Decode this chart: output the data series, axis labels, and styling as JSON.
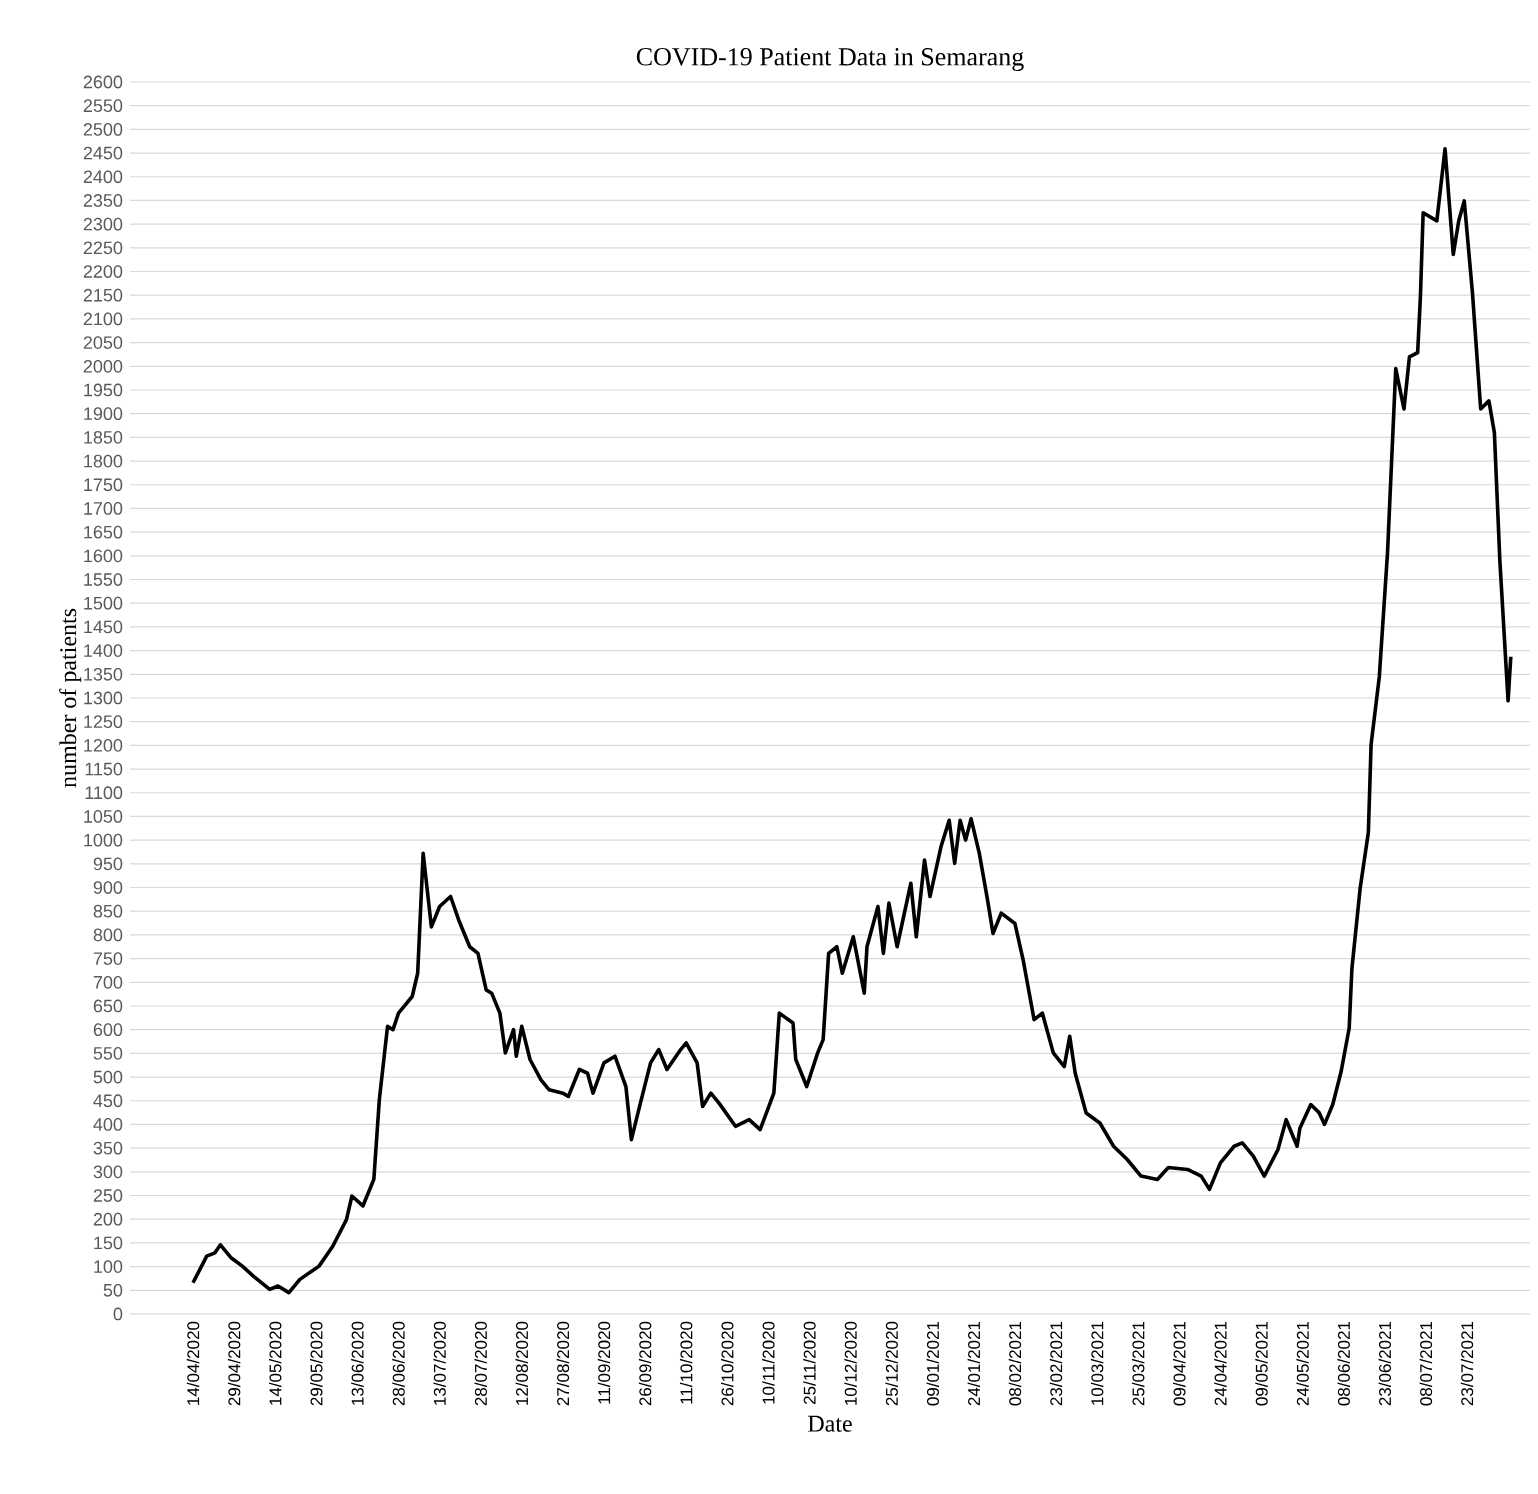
{
  "chart_data": {
    "type": "line",
    "title": "COVID-19 Patient Data in Semarang",
    "xlabel": "Date",
    "ylabel": "number of patients",
    "x": [
      "2020-04-14",
      "2020-04-19",
      "2020-04-22",
      "2020-04-24",
      "2020-04-28",
      "2020-05-02",
      "2020-05-06",
      "2020-05-12",
      "2020-05-15",
      "2020-05-19",
      "2020-05-23",
      "2020-05-30",
      "2020-06-04",
      "2020-06-09",
      "2020-06-11",
      "2020-06-15",
      "2020-06-19",
      "2020-06-21",
      "2020-06-24",
      "2020-06-26",
      "2020-06-28",
      "2020-07-03",
      "2020-07-05",
      "2020-07-07",
      "2020-07-10",
      "2020-07-13",
      "2020-07-17",
      "2020-07-20",
      "2020-07-24",
      "2020-07-27",
      "2020-07-30",
      "2020-08-01",
      "2020-08-04",
      "2020-08-06",
      "2020-08-09",
      "2020-08-10",
      "2020-08-12",
      "2020-08-15",
      "2020-08-19",
      "2020-08-22",
      "2020-08-27",
      "2020-08-29",
      "2020-09-02",
      "2020-09-05",
      "2020-09-07",
      "2020-09-11",
      "2020-09-15",
      "2020-09-19",
      "2020-09-21",
      "2020-09-24",
      "2020-09-28",
      "2020-10-01",
      "2020-10-04",
      "2020-10-09",
      "2020-10-11",
      "2020-10-15",
      "2020-10-17",
      "2020-10-20",
      "2020-10-23",
      "2020-10-29",
      "2020-11-03",
      "2020-11-07",
      "2020-11-12",
      "2020-11-14",
      "2020-11-19",
      "2020-11-20",
      "2020-11-24",
      "2020-11-28",
      "2020-11-30",
      "2020-12-02",
      "2020-12-05",
      "2020-12-07",
      "2020-12-11",
      "2020-12-15",
      "2020-12-16",
      "2020-12-20",
      "2020-12-22",
      "2020-12-24",
      "2020-12-27",
      "2021-01-01",
      "2021-01-03",
      "2021-01-06",
      "2021-01-08",
      "2021-01-12",
      "2021-01-15",
      "2021-01-17",
      "2021-01-19",
      "2021-01-21",
      "2021-01-23",
      "2021-01-26",
      "2021-01-29",
      "2021-01-31",
      "2021-02-03",
      "2021-02-08",
      "2021-02-11",
      "2021-02-15",
      "2021-02-18",
      "2021-02-22",
      "2021-02-26",
      "2021-02-28",
      "2021-03-02",
      "2021-03-06",
      "2021-03-11",
      "2021-03-16",
      "2021-03-21",
      "2021-03-26",
      "2021-04-01",
      "2021-04-05",
      "2021-04-12",
      "2021-04-17",
      "2021-04-20",
      "2021-04-24",
      "2021-04-29",
      "2021-05-02",
      "2021-05-06",
      "2021-05-10",
      "2021-05-15",
      "2021-05-18",
      "2021-05-22",
      "2021-05-23",
      "2021-05-27",
      "2021-05-30",
      "2021-06-01",
      "2021-06-04",
      "2021-06-07",
      "2021-06-10",
      "2021-06-11",
      "2021-06-14",
      "2021-06-17",
      "2021-06-18",
      "2021-06-21",
      "2021-06-24",
      "2021-06-27",
      "2021-06-30",
      "2021-07-02",
      "2021-07-05",
      "2021-07-06",
      "2021-07-07",
      "2021-07-12",
      "2021-07-15",
      "2021-07-18",
      "2021-07-20",
      "2021-07-22",
      "2021-07-25",
      "2021-07-28",
      "2021-07-31",
      "2021-08-02",
      "2021-08-04",
      "2021-08-07",
      "2021-08-08"
    ],
    "series": [
      {
        "color": "#000000",
        "values": [
          66,
          122,
          129,
          146,
          118,
          101,
          80,
          52,
          59,
          45,
          73,
          101,
          143,
          199,
          249,
          228,
          284,
          452,
          607,
          600,
          635,
          670,
          719,
          972,
          817,
          860,
          881,
          831,
          775,
          761,
          684,
          677,
          635,
          551,
          600,
          544,
          607,
          537,
          494,
          473,
          466,
          459,
          516,
          508,
          466,
          530,
          544,
          480,
          368,
          438,
          530,
          558,
          516,
          558,
          572,
          530,
          438,
          466,
          445,
          396,
          410,
          389,
          466,
          635,
          614,
          537,
          480,
          551,
          579,
          761,
          775,
          719,
          796,
          677,
          775,
          860,
          761,
          867,
          775,
          909,
          796,
          958,
          881,
          986,
          1042,
          951,
          1042,
          1000,
          1045,
          972,
          874,
          803,
          846,
          824,
          747,
          621,
          635,
          551,
          522,
          586,
          508,
          424,
          403,
          354,
          326,
          291,
          284,
          309,
          305,
          291,
          263,
          319,
          354,
          361,
          333,
          291,
          347,
          410,
          354,
          392,
          442,
          425,
          400,
          442,
          510,
          603,
          729,
          898,
          1016,
          1202,
          1345,
          1607,
          1995,
          1910,
          2020,
          2029,
          2147,
          2324,
          2307,
          2459,
          2236,
          2307,
          2349,
          2155,
          1910,
          1927,
          1860,
          1590,
          1294,
          1387
        ]
      }
    ],
    "xlim": [
      "2020-03-22",
      "2021-08-15"
    ],
    "xticks": [
      {
        "value": "2020-04-14",
        "label": "14/04/2020"
      },
      {
        "value": "2020-04-29",
        "label": "29/04/2020"
      },
      {
        "value": "2020-05-14",
        "label": "14/05/2020"
      },
      {
        "value": "2020-05-29",
        "label": "29/05/2020"
      },
      {
        "value": "2020-06-13",
        "label": "13/06/2020"
      },
      {
        "value": "2020-06-28",
        "label": "28/06/2020"
      },
      {
        "value": "2020-07-13",
        "label": "13/07/2020"
      },
      {
        "value": "2020-07-28",
        "label": "28/07/2020"
      },
      {
        "value": "2020-08-12",
        "label": "12/08/2020"
      },
      {
        "value": "2020-08-27",
        "label": "27/08/2020"
      },
      {
        "value": "2020-09-11",
        "label": "11/09/2020"
      },
      {
        "value": "2020-09-26",
        "label": "26/09/2020"
      },
      {
        "value": "2020-10-11",
        "label": "11/10/2020"
      },
      {
        "value": "2020-10-26",
        "label": "26/10/2020"
      },
      {
        "value": "2020-11-10",
        "label": "10/11/2020"
      },
      {
        "value": "2020-11-25",
        "label": "25/11/2020"
      },
      {
        "value": "2020-12-10",
        "label": "10/12/2020"
      },
      {
        "value": "2020-12-25",
        "label": "25/12/2020"
      },
      {
        "value": "2021-01-09",
        "label": "09/01/2021"
      },
      {
        "value": "2021-01-24",
        "label": "24/01/2021"
      },
      {
        "value": "2021-02-08",
        "label": "08/02/2021"
      },
      {
        "value": "2021-02-23",
        "label": "23/02/2021"
      },
      {
        "value": "2021-03-10",
        "label": "10/03/2021"
      },
      {
        "value": "2021-03-25",
        "label": "25/03/2021"
      },
      {
        "value": "2021-04-09",
        "label": "09/04/2021"
      },
      {
        "value": "2021-04-24",
        "label": "24/04/2021"
      },
      {
        "value": "2021-05-09",
        "label": "09/05/2021"
      },
      {
        "value": "2021-05-24",
        "label": "24/05/2021"
      },
      {
        "value": "2021-06-08",
        "label": "08/06/2021"
      },
      {
        "value": "2021-06-23",
        "label": "23/06/2021"
      },
      {
        "value": "2021-07-08",
        "label": "08/07/2021"
      },
      {
        "value": "2021-07-23",
        "label": "23/07/2021"
      }
    ],
    "ylim": [
      0,
      2600
    ],
    "yticks": [
      0,
      50,
      100,
      150,
      200,
      250,
      300,
      350,
      400,
      450,
      500,
      550,
      600,
      650,
      700,
      750,
      800,
      850,
      900,
      950,
      1000,
      1050,
      1100,
      1150,
      1200,
      1250,
      1300,
      1350,
      1400,
      1450,
      1500,
      1550,
      1600,
      1650,
      1700,
      1750,
      1800,
      1850,
      1900,
      1950,
      2000,
      2050,
      2100,
      2150,
      2200,
      2250,
      2300,
      2350,
      2400,
      2450,
      2500,
      2550,
      2600
    ],
    "grid": "y"
  }
}
